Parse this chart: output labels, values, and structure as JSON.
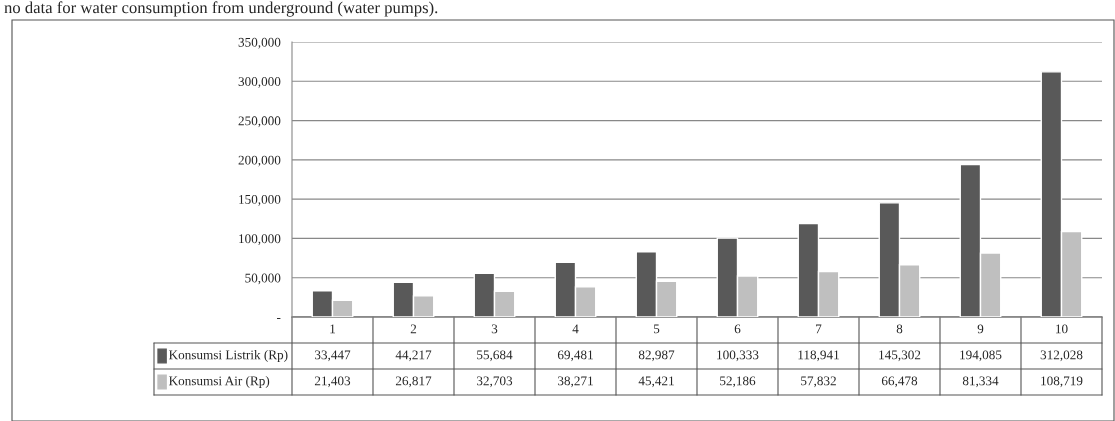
{
  "chart_data": {
    "type": "bar",
    "annotations": [
      "no data for water consumption from underground (water pumps)."
    ],
    "categories": [
      "1",
      "2",
      "3",
      "4",
      "5",
      "6",
      "7",
      "8",
      "9",
      "10"
    ],
    "series": [
      {
        "name": "Konsumsi Listrik (Rp)",
        "color": "#595959",
        "values": [
          33447,
          44217,
          55684,
          69481,
          82987,
          100333,
          118941,
          145302,
          194085,
          312028
        ],
        "value_labels": [
          "33,447",
          "44,217",
          "55,684",
          "69,481",
          "82,987",
          "100,333",
          "118,941",
          "145,302",
          "194,085",
          "312,028"
        ]
      },
      {
        "name": "Konsumsi Air (Rp)",
        "color": "#bfbfbf",
        "values": [
          21403,
          26817,
          32703,
          38271,
          45421,
          52186,
          57832,
          66478,
          81334,
          108719
        ],
        "value_labels": [
          "21,403",
          "26,817",
          "32,703",
          "38,271",
          "45,421",
          "52,186",
          "57,832",
          "66,478",
          "81,334",
          "108,719"
        ]
      }
    ],
    "ylim": [
      0,
      350000
    ],
    "yticks": [
      {
        "value": 0,
        "label": "-"
      },
      {
        "value": 50000,
        "label": "50,000"
      },
      {
        "value": 100000,
        "label": "100,000"
      },
      {
        "value": 150000,
        "label": "150,000"
      },
      {
        "value": 200000,
        "label": "200,000"
      },
      {
        "value": 250000,
        "label": "250,000"
      },
      {
        "value": 300000,
        "label": "300,000"
      },
      {
        "value": 350000,
        "label": "350,000"
      }
    ],
    "grid": "y",
    "legend": "bottom"
  }
}
